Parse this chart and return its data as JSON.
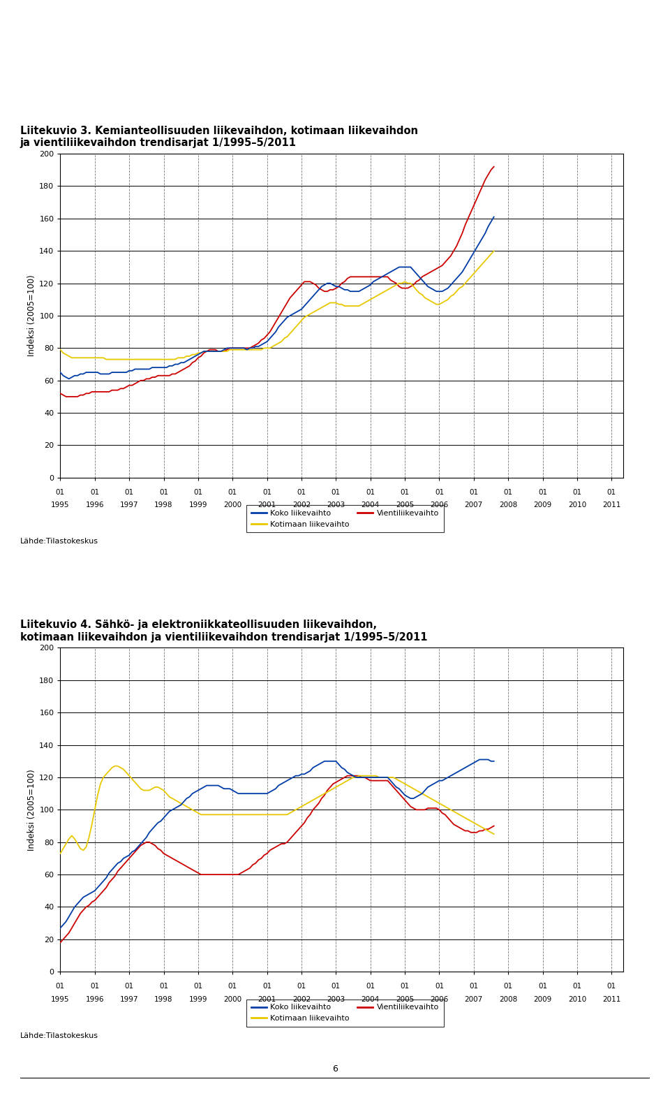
{
  "title1": "Liitekuvio 3. Kemianteollisuuden liikevaihdon, kotimaan liikevaihdon\nja vientiliikevaihdon trendisarjat 1/1995–5/2011",
  "title2": "Liitekuvio 4. Sähkö- ja elektroniikkateollisuuden liikevaihdon,\nkotimaan liikevaihdon ja vientiliikevaihdon trendisarjat 1/1995–5/2011",
  "ylabel": "Indeksi (2005=100)",
  "source": "Lähde:Tilastokeskus",
  "legend_koko": "Koko liikevaihto",
  "legend_kotimaan": "Kotimaan liikevaihto",
  "legend_vienti": "Vientiliikevaihto",
  "color_koko": "#003da6",
  "color_kotimaan": "#e8c800",
  "color_vienti": "#cc0000",
  "ylim": [
    0,
    200
  ],
  "yticks": [
    0,
    20,
    40,
    60,
    80,
    100,
    120,
    140,
    160,
    180,
    200
  ],
  "chart1": {
    "koko": [
      65,
      63,
      62,
      61,
      62,
      63,
      63,
      64,
      64,
      65,
      65,
      65,
      65,
      65,
      64,
      64,
      64,
      64,
      65,
      65,
      65,
      65,
      65,
      65,
      66,
      66,
      67,
      67,
      67,
      67,
      67,
      67,
      68,
      68,
      68,
      68,
      68,
      68,
      69,
      69,
      70,
      70,
      71,
      71,
      72,
      73,
      74,
      75,
      76,
      77,
      78,
      78,
      78,
      78,
      78,
      78,
      78,
      79,
      80,
      80,
      80,
      80,
      80,
      80,
      80,
      79,
      80,
      80,
      81,
      81,
      82,
      83,
      84,
      86,
      88,
      90,
      93,
      95,
      97,
      99,
      100,
      101,
      102,
      103,
      104,
      106,
      108,
      110,
      112,
      114,
      116,
      118,
      119,
      120,
      120,
      119,
      118,
      118,
      117,
      116,
      116,
      115,
      115,
      115,
      115,
      116,
      117,
      118,
      119,
      121,
      122,
      123,
      124,
      125,
      126,
      127,
      128,
      129,
      130,
      130,
      130,
      130,
      130,
      128,
      126,
      124,
      122,
      120,
      118,
      117,
      116,
      115,
      115,
      115,
      116,
      117,
      119,
      121,
      123,
      125,
      127,
      130,
      133,
      136,
      139,
      142,
      145,
      148,
      151,
      155,
      158,
      161
    ],
    "kotimaan": [
      79,
      77,
      76,
      75,
      74,
      74,
      74,
      74,
      74,
      74,
      74,
      74,
      74,
      74,
      74,
      74,
      73,
      73,
      73,
      73,
      73,
      73,
      73,
      73,
      73,
      73,
      73,
      73,
      73,
      73,
      73,
      73,
      73,
      73,
      73,
      73,
      73,
      73,
      73,
      73,
      73,
      74,
      74,
      74,
      75,
      75,
      76,
      76,
      77,
      77,
      78,
      78,
      78,
      78,
      78,
      78,
      78,
      78,
      78,
      79,
      79,
      79,
      79,
      79,
      79,
      79,
      79,
      79,
      79,
      79,
      79,
      80,
      80,
      80,
      81,
      82,
      83,
      84,
      86,
      87,
      89,
      91,
      93,
      95,
      97,
      99,
      100,
      101,
      102,
      103,
      104,
      105,
      106,
      107,
      108,
      108,
      108,
      107,
      107,
      106,
      106,
      106,
      106,
      106,
      106,
      107,
      108,
      109,
      110,
      111,
      112,
      113,
      114,
      115,
      116,
      117,
      118,
      119,
      120,
      120,
      121,
      120,
      120,
      118,
      116,
      114,
      113,
      111,
      110,
      109,
      108,
      107,
      107,
      108,
      109,
      110,
      112,
      113,
      115,
      117,
      118,
      120,
      122,
      124,
      126,
      128,
      130,
      132,
      134,
      136,
      138,
      140
    ],
    "vienti": [
      52,
      51,
      50,
      50,
      50,
      50,
      50,
      51,
      51,
      52,
      52,
      53,
      53,
      53,
      53,
      53,
      53,
      53,
      54,
      54,
      54,
      55,
      55,
      56,
      57,
      57,
      58,
      59,
      60,
      60,
      61,
      61,
      62,
      62,
      63,
      63,
      63,
      63,
      63,
      64,
      64,
      65,
      66,
      67,
      68,
      69,
      71,
      72,
      74,
      75,
      77,
      78,
      79,
      79,
      79,
      78,
      78,
      78,
      79,
      80,
      80,
      80,
      80,
      80,
      80,
      80,
      80,
      81,
      82,
      83,
      85,
      86,
      88,
      90,
      93,
      96,
      99,
      102,
      105,
      108,
      111,
      113,
      115,
      117,
      119,
      121,
      121,
      121,
      120,
      119,
      117,
      116,
      115,
      115,
      116,
      116,
      117,
      118,
      120,
      121,
      123,
      124,
      124,
      124,
      124,
      124,
      124,
      124,
      124,
      124,
      124,
      124,
      124,
      124,
      124,
      122,
      121,
      120,
      118,
      117,
      117,
      117,
      118,
      119,
      121,
      122,
      124,
      125,
      126,
      127,
      128,
      129,
      130,
      131,
      133,
      135,
      137,
      140,
      143,
      147,
      151,
      156,
      160,
      164,
      168,
      172,
      176,
      180,
      184,
      187,
      190,
      192
    ]
  },
  "chart2": {
    "koko": [
      27,
      29,
      31,
      34,
      37,
      40,
      42,
      44,
      46,
      47,
      48,
      49,
      50,
      52,
      54,
      56,
      58,
      61,
      63,
      65,
      67,
      68,
      70,
      71,
      72,
      74,
      75,
      77,
      79,
      81,
      83,
      86,
      88,
      90,
      92,
      93,
      95,
      97,
      99,
      100,
      101,
      102,
      103,
      105,
      107,
      108,
      110,
      111,
      112,
      113,
      114,
      115,
      115,
      115,
      115,
      115,
      114,
      113,
      113,
      113,
      112,
      111,
      110,
      110,
      110,
      110,
      110,
      110,
      110,
      110,
      110,
      110,
      110,
      111,
      112,
      113,
      115,
      116,
      117,
      118,
      119,
      120,
      121,
      121,
      122,
      122,
      123,
      124,
      126,
      127,
      128,
      129,
      130,
      130,
      130,
      130,
      130,
      128,
      126,
      125,
      123,
      122,
      121,
      120,
      120,
      120,
      120,
      120,
      120,
      120,
      120,
      120,
      120,
      120,
      120,
      118,
      116,
      114,
      113,
      111,
      109,
      108,
      107,
      107,
      108,
      109,
      110,
      112,
      114,
      115,
      116,
      117,
      118,
      118,
      119,
      120,
      121,
      122,
      123,
      124,
      125,
      126,
      127,
      128,
      129,
      130,
      131,
      131,
      131,
      131,
      130,
      130
    ],
    "kotimaan": [
      73,
      76,
      79,
      82,
      84,
      82,
      79,
      76,
      75,
      77,
      83,
      91,
      100,
      109,
      116,
      120,
      122,
      124,
      126,
      127,
      127,
      126,
      125,
      123,
      121,
      119,
      117,
      115,
      113,
      112,
      112,
      112,
      113,
      114,
      114,
      113,
      112,
      110,
      108,
      107,
      106,
      105,
      104,
      103,
      102,
      101,
      100,
      99,
      98,
      97,
      97,
      97,
      97,
      97,
      97,
      97,
      97,
      97,
      97,
      97,
      97,
      97,
      97,
      97,
      97,
      97,
      97,
      97,
      97,
      97,
      97,
      97,
      97,
      97,
      97,
      97,
      97,
      97,
      97,
      97,
      98,
      99,
      100,
      101,
      102,
      103,
      104,
      105,
      106,
      107,
      108,
      109,
      110,
      111,
      112,
      113,
      114,
      115,
      116,
      117,
      118,
      119,
      120,
      120,
      121,
      121,
      121,
      121,
      121,
      121,
      121,
      120,
      120,
      120,
      120,
      120,
      120,
      119,
      118,
      117,
      116,
      115,
      114,
      113,
      112,
      111,
      110,
      109,
      108,
      107,
      106,
      105,
      104,
      103,
      102,
      101,
      100,
      99,
      98,
      97,
      96,
      95,
      94,
      93,
      92,
      91,
      90,
      89,
      88,
      87,
      86,
      85
    ],
    "vienti": [
      18,
      20,
      22,
      24,
      27,
      30,
      33,
      36,
      38,
      40,
      41,
      43,
      44,
      46,
      48,
      50,
      52,
      55,
      57,
      59,
      62,
      64,
      66,
      68,
      70,
      72,
      74,
      76,
      78,
      79,
      80,
      80,
      79,
      78,
      76,
      75,
      73,
      72,
      71,
      70,
      69,
      68,
      67,
      66,
      65,
      64,
      63,
      62,
      61,
      60,
      60,
      60,
      60,
      60,
      60,
      60,
      60,
      60,
      60,
      60,
      60,
      60,
      60,
      61,
      62,
      63,
      64,
      66,
      67,
      69,
      70,
      72,
      73,
      75,
      76,
      77,
      78,
      79,
      79,
      80,
      82,
      84,
      86,
      88,
      90,
      92,
      95,
      97,
      100,
      102,
      104,
      107,
      109,
      112,
      114,
      116,
      117,
      118,
      119,
      120,
      121,
      121,
      121,
      121,
      121,
      120,
      120,
      119,
      118,
      118,
      118,
      118,
      118,
      118,
      118,
      116,
      114,
      112,
      110,
      108,
      106,
      104,
      102,
      101,
      100,
      100,
      100,
      100,
      101,
      101,
      101,
      101,
      100,
      98,
      97,
      95,
      93,
      91,
      90,
      89,
      88,
      87,
      87,
      86,
      86,
      86,
      87,
      87,
      88,
      88,
      89,
      90
    ]
  }
}
